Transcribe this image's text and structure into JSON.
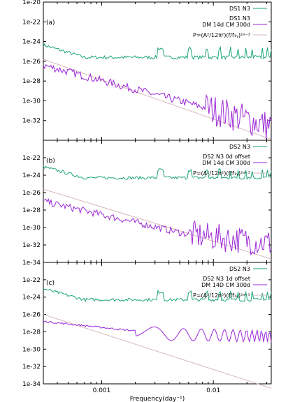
{
  "chart_data": [
    {
      "type": "line",
      "panel_label": "(a)",
      "ylim_exp": [
        -34,
        -20
      ],
      "yticks": [
        "1e-20",
        "1e-22",
        "1e-24",
        "1e-26",
        "1e-28",
        "1e-30",
        "1e-32"
      ],
      "legend": [
        "DS1 N3",
        "DS1 N3",
        "DM 14d CM 300d",
        "P=(A²/12π²)(f/f₁ᵧ)²ᵅ⁻³"
      ],
      "green_level": -25.6,
      "purple": {
        "start": -26.4,
        "knee": 0.0085,
        "knee_val": -30.7,
        "end": -32.6
      },
      "model": {
        "start": -25.8,
        "end": -33.9
      },
      "purple_style": "noisy"
    },
    {
      "type": "line",
      "panel_label": "(b)",
      "ylim_exp": [
        -34,
        -20
      ],
      "yticks": [
        "1e-22",
        "1e-24",
        "1e-26",
        "1e-28",
        "1e-30",
        "1e-32",
        "1e-34"
      ],
      "legend": [
        "DS2 N3",
        "DS2 N3 0d offset",
        "DM 14d CM 300d",
        "P=(A²/12π²)(f/f₁ᵧ)²ᵅ⁻³"
      ],
      "green_level": -24.3,
      "purple": {
        "start": -27.0,
        "knee": 0.006,
        "knee_val": -30.8,
        "end": -31.8
      },
      "model": {
        "start": -25.6,
        "end": -33.6
      },
      "purple_style": "noisy"
    },
    {
      "type": "line",
      "panel_label": "(c)",
      "ylim_exp": [
        -34,
        -20
      ],
      "yticks": [
        "1e-22",
        "1e-24",
        "1e-26",
        "1e-28",
        "1e-30",
        "1e-32",
        "1e-34"
      ],
      "legend": [
        "DS2 N3",
        "DS2 N3 1d offset",
        "DM 14D CM 300d",
        "P=(A²/12π²)(f/f₁ᵧ)²ᵅ⁻³"
      ],
      "green_level": -24.3,
      "purple": {
        "start": -26.8,
        "knee": 0.004,
        "knee_val": -28.3,
        "end": -28.5
      },
      "model": {
        "start": -26.0,
        "end": -34.5
      },
      "purple_style": "smooth"
    }
  ],
  "x_axis": {
    "type": "log",
    "xlim": [
      0.0003,
      0.033
    ],
    "ticks": [
      {
        "v": 0.001,
        "label": "0.001"
      },
      {
        "v": 0.01,
        "label": "0.01"
      }
    ],
    "label": "Frequency(day⁻¹)"
  },
  "colors": {
    "green": "#1aa37a",
    "purple": "#9c27d6",
    "model": "#d9b8b8"
  }
}
